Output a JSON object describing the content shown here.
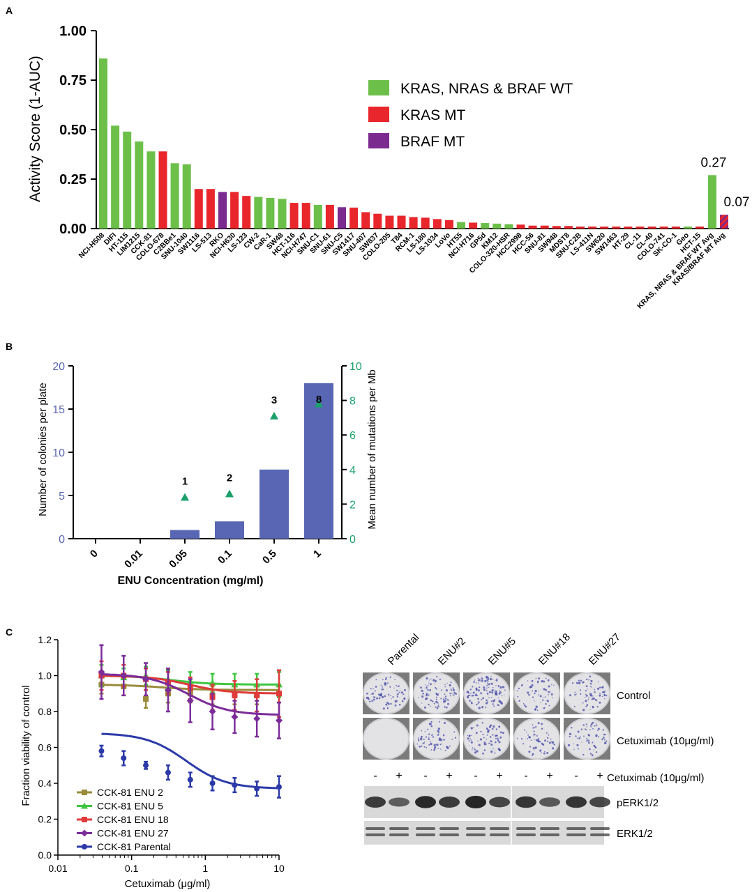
{
  "panels": {
    "a": {
      "letter": "A"
    },
    "b": {
      "letter": "B"
    },
    "c": {
      "letter": "C"
    }
  },
  "colors": {
    "wt": "#6cc04a",
    "kras": "#e8262b",
    "braf": "#7b2a8f",
    "bar_b": "#5866b4",
    "triangle_b": "#1aa06b",
    "ylabel_b_left": "#5866b4",
    "ylabel_b_right": "#1aa06b",
    "enu2": "#9a8a3a",
    "enu5": "#3fc63f",
    "enu18": "#e03a3a",
    "enu27": "#7b2c9a",
    "parental": "#2b3aa8"
  },
  "chart_data": [
    {
      "id": "panel-a",
      "type": "bar",
      "ylabel": "Activity Score (1-AUC)",
      "ylim": [
        0,
        1.0
      ],
      "yticks": [
        "0.00",
        "0.25",
        "0.50",
        "0.75",
        "1.00"
      ],
      "legend_position": "top-right",
      "legend": [
        {
          "label": "KRAS, NRAS & BRAF WT",
          "status": "wt"
        },
        {
          "label": "KRAS MT",
          "status": "kras"
        },
        {
          "label": "BRAF MT",
          "status": "braf"
        }
      ],
      "categories": [
        "NCI-H508",
        "DIFI",
        "HT-115",
        "LIM1215",
        "CCK-81",
        "COLO-678",
        "C2BBe1",
        "SNU-1040",
        "SW1116",
        "LS-513",
        "RKO",
        "NCI-H630",
        "LS-123",
        "CW-2",
        "CaR-1",
        "SW48",
        "HCT-116",
        "NCI-H747",
        "SNU-C1",
        "SNU-61",
        "SNU-C5",
        "SW1417",
        "SNU-407",
        "SW837",
        "COLO-205",
        "T84",
        "RCM-1",
        "LS-180",
        "LS-1034",
        "LoVo",
        "HT55",
        "NCI-H716",
        "GP5d",
        "KM12",
        "COLO-320-HSR",
        "HCC2998",
        "HCC-56",
        "SNU-81",
        "SW948",
        "MDST8",
        "SNU-C2B",
        "LS-411N",
        "SW620",
        "SW1463",
        "HT-29",
        "CL-11",
        "CL-40",
        "COLO-741",
        "SK-CO-1",
        "Geo",
        "HCT-15"
      ],
      "values": [
        0.86,
        0.52,
        0.49,
        0.44,
        0.39,
        0.39,
        0.33,
        0.325,
        0.2,
        0.2,
        0.185,
        0.185,
        0.165,
        0.16,
        0.155,
        0.15,
        0.13,
        0.13,
        0.12,
        0.12,
        0.108,
        0.106,
        0.083,
        0.075,
        0.065,
        0.065,
        0.058,
        0.055,
        0.048,
        0.043,
        0.033,
        0.03,
        0.028,
        0.025,
        0.022,
        0.02,
        0.015,
        0.015,
        0.013,
        0.013,
        0.01,
        0.01,
        0.01,
        0.01,
        0.01,
        0.01,
        0.01,
        0.01,
        0.01,
        0.01,
        0.01
      ],
      "status": [
        "wt",
        "wt",
        "wt",
        "wt",
        "wt",
        "kras",
        "wt",
        "wt",
        "kras",
        "kras",
        "braf",
        "kras",
        "kras",
        "wt",
        "wt",
        "wt",
        "kras",
        "kras",
        "wt",
        "kras",
        "braf",
        "kras",
        "kras",
        "kras",
        "kras",
        "kras",
        "kras",
        "kras",
        "kras",
        "kras",
        "wt",
        "kras",
        "wt",
        "wt",
        "wt",
        "kras",
        "kras",
        "kras",
        "kras",
        "kras",
        "kras",
        "kras",
        "kras",
        "kras",
        "kras",
        "kras",
        "kras",
        "kras",
        "kras",
        "wt",
        "kras"
      ],
      "averages": [
        {
          "label": "KRAS, NRAS & BRAF WT Avg",
          "value": 0.27,
          "value_label": "0.27",
          "status": "wt"
        },
        {
          "label": "KRAS/BRAF MT Avg",
          "value": 0.07,
          "value_label": "0.07",
          "status": "mixed"
        }
      ]
    },
    {
      "id": "panel-b",
      "type": "bar",
      "xlabel": "ENU Concentration (mg/ml)",
      "ylabel": "Number of colonies per plate",
      "y2label": "Mean number of mutations per Mb",
      "ylim": [
        0,
        20
      ],
      "y2lim": [
        0,
        10
      ],
      "yticks": [
        "0",
        "5",
        "10",
        "15",
        "20"
      ],
      "y2ticks": [
        "0",
        "2",
        "4",
        "6",
        "8",
        "10"
      ],
      "categories": [
        "0",
        "0.01",
        "0.05",
        "0.1",
        "0.5",
        "1"
      ],
      "series": [
        {
          "values": [
            0,
            0,
            1,
            2,
            8,
            18
          ]
        },
        {
          "values": [
            null,
            null,
            2.4,
            2.6,
            7.1,
            7.8
          ],
          "annotations": [
            "",
            "",
            "1",
            "2",
            "3",
            "8"
          ]
        }
      ]
    },
    {
      "id": "panel-c-curve",
      "type": "line",
      "xlabel": "Cetuximab (μg/ml)",
      "ylabel": "Fraction viability of control",
      "xscale": "log",
      "xlim": [
        0.01,
        10
      ],
      "ylim": [
        0,
        1.2
      ],
      "xticks": [
        "0.01",
        "0.1",
        "1",
        "10"
      ],
      "yticks": [
        "0.0",
        "0.2",
        "0.4",
        "0.6",
        "0.8",
        "1.0",
        "1.2"
      ],
      "legend_position": "bottom-left",
      "x": [
        0.039,
        0.078,
        0.156,
        0.3125,
        0.625,
        1.25,
        2.5,
        5,
        10
      ],
      "series": [
        {
          "name": "CCK-81 ENU 2",
          "color_key": "enu2",
          "marker": "square",
          "values": [
            0.95,
            0.94,
            0.87,
            0.9,
            0.9,
            0.89,
            0.89,
            0.89,
            0.9
          ],
          "errors": [
            0.05,
            0.05,
            0.05,
            0.05,
            0.05,
            0.05,
            0.05,
            0.05,
            0.05
          ],
          "fit": [
            0.95,
            0.92,
            0.9,
            0.89
          ]
        },
        {
          "name": "CCK-81 ENU 5",
          "color_key": "enu5",
          "marker": "triangle",
          "values": [
            1.0,
            0.99,
            1.0,
            0.98,
            0.97,
            0.96,
            0.95,
            0.95,
            0.95
          ],
          "errors": [
            0.06,
            0.05,
            0.05,
            0.05,
            0.05,
            0.05,
            0.06,
            0.06,
            0.07
          ],
          "fit": [
            1.0,
            0.95,
            0.955,
            0.955
          ]
        },
        {
          "name": "CCK-81 ENU 18",
          "color_key": "enu18",
          "marker": "square",
          "values": [
            1.0,
            1.0,
            0.98,
            0.96,
            0.93,
            0.88,
            0.89,
            0.89,
            0.9
          ],
          "errors": [
            0.08,
            0.06,
            0.06,
            0.06,
            0.06,
            0.07,
            0.08,
            0.09,
            0.13
          ],
          "fit": [
            1.0,
            0.9,
            0.895,
            0.895
          ]
        },
        {
          "name": "CCK-81 ENU 27",
          "color_key": "enu27",
          "marker": "diamond",
          "values": [
            1.02,
            1.0,
            0.98,
            0.92,
            0.86,
            0.8,
            0.77,
            0.76,
            0.75
          ],
          "errors": [
            0.15,
            0.11,
            0.09,
            0.12,
            0.12,
            0.1,
            0.09,
            0.1,
            0.1
          ],
          "fit": [
            1.01,
            0.78,
            0.78,
            0.78
          ]
        },
        {
          "name": "CCK-81 Parental",
          "color_key": "parental",
          "marker": "circle",
          "values": [
            0.58,
            0.54,
            0.5,
            0.46,
            0.42,
            0.4,
            0.39,
            0.37,
            0.38
          ],
          "errors": [
            0.03,
            0.04,
            0.02,
            0.04,
            0.04,
            0.04,
            0.04,
            0.04,
            0.06
          ],
          "fit": [
            0.68,
            0.37,
            0.365,
            0.365
          ]
        }
      ]
    }
  ],
  "blots": {
    "plate_headers": [
      "Parental",
      "ENU#2",
      "ENU#5",
      "ENU#18",
      "ENU#27"
    ],
    "row_labels": [
      "Control",
      "Cetuximab (10μg/ml)"
    ],
    "lane_signs": [
      "-",
      "+",
      "-",
      "+",
      "-",
      "+",
      "-",
      "+",
      "-",
      "+"
    ],
    "lane_treatment_label": "Cetuximab (10μg/ml)",
    "blot_labels": [
      "pERK1/2",
      "ERK1/2"
    ],
    "perk_intensity": [
      0.8,
      0.5,
      0.95,
      0.8,
      1.0,
      0.7,
      0.85,
      0.55,
      0.85,
      0.7
    ],
    "erk_intensity": [
      0.7,
      0.7,
      0.7,
      0.7,
      0.7,
      0.7,
      0.7,
      0.7,
      0.7,
      0.7
    ],
    "plate_density": [
      [
        0.55,
        0.6,
        0.85,
        0.4,
        0.5
      ],
      [
        0.0,
        0.45,
        0.5,
        0.4,
        0.45
      ]
    ]
  }
}
